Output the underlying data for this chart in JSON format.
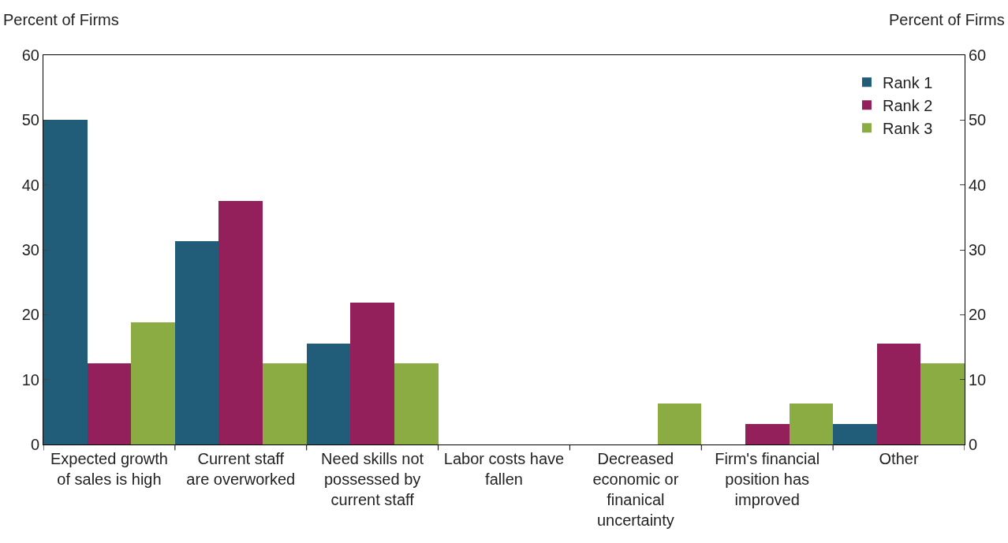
{
  "chart_data": {
    "type": "bar",
    "ylabel": "Percent of Firms",
    "y2label": "Percent of Firms",
    "categories": [
      "Expected growth of sales is high",
      "Current staff are overworked",
      "Need skills not possessed by current staff",
      "Labor costs have fallen",
      "Decreased economic or finanical uncertainty",
      "Firm's financial position has improved",
      "Other"
    ],
    "series": [
      {
        "name": "Rank 1",
        "color": "#215d79",
        "values": [
          50,
          31.3,
          15.6,
          0,
          0,
          0,
          3.1
        ]
      },
      {
        "name": "Rank 2",
        "color": "#93205a",
        "values": [
          12.5,
          37.5,
          21.9,
          0,
          0,
          3.1,
          15.6
        ]
      },
      {
        "name": "Rank 3",
        "color": "#8aac43",
        "values": [
          18.8,
          12.5,
          12.5,
          0,
          6.3,
          6.3,
          12.5
        ]
      }
    ],
    "ylim": [
      0,
      60
    ],
    "yticks": [
      0,
      10,
      20,
      30,
      40,
      50,
      60
    ],
    "y2lim": [
      0,
      60
    ],
    "y2ticks": [
      0,
      10,
      20,
      30,
      40,
      50,
      60
    ],
    "legend": "top right"
  }
}
